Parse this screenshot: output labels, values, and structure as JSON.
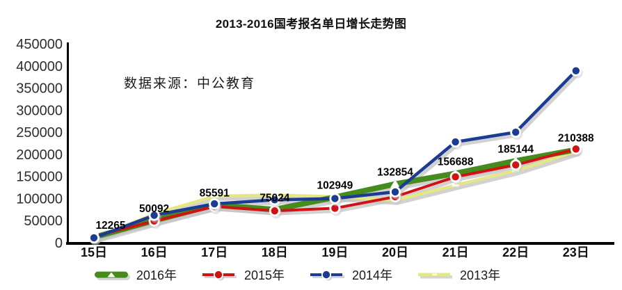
{
  "chart_data": {
    "type": "line",
    "title": "2013-2016国考报名单日增长走势图",
    "source_note": "数据来源：中公教育",
    "categories": [
      "15日",
      "16日",
      "17日",
      "18日",
      "19日",
      "20日",
      "21日",
      "22日",
      "23日"
    ],
    "series": [
      {
        "name": "2016年",
        "color": "#458b1d",
        "marker": "triangle-white",
        "line_width": 8,
        "values": [
          12265,
          50092,
          85591,
          75024,
          102949,
          132854,
          156688,
          185144,
          210388
        ]
      },
      {
        "name": "2015年",
        "color": "#d01212",
        "marker": "circle-white-ring",
        "line_width": 4,
        "values": [
          14000,
          49000,
          82000,
          72000,
          78000,
          104000,
          149000,
          176000,
          212000
        ]
      },
      {
        "name": "2014年",
        "color": "#1b3c92",
        "marker": "circle-white-ring",
        "line_width": 4.5,
        "values": [
          11000,
          62000,
          88000,
          97000,
          100000,
          115000,
          228000,
          250000,
          389000
        ]
      },
      {
        "name": "2013年",
        "color": "#e5e684",
        "marker": "dash-white",
        "line_width": 4.5,
        "values": [
          9000,
          65000,
          105000,
          108000,
          104000,
          96000,
          130000,
          163000,
          206000
        ]
      }
    ],
    "point_labels": [
      "12265",
      "50092",
      "85591",
      "75024",
      "102949",
      "132854",
      "156688",
      "185144",
      "210388"
    ],
    "y_axis": {
      "min": 0,
      "max": 450000,
      "step": 50000,
      "tick_labels": [
        "450000",
        "400000",
        "350000",
        "300000",
        "250000",
        "200000",
        "150000",
        "100000",
        "50000",
        "0"
      ]
    },
    "x_axis": {
      "tick_labels": [
        "15日",
        "16日",
        "17日",
        "18日",
        "19日",
        "20日",
        "21日",
        "22日",
        "23日"
      ]
    },
    "legend": {
      "position": "bottom",
      "items": [
        "2016年",
        "2015年",
        "2014年",
        "2013年"
      ]
    },
    "grid": false,
    "colors": {
      "shadow": "#c3c3c3",
      "axis": "#000000",
      "label_text": "#000000"
    }
  }
}
